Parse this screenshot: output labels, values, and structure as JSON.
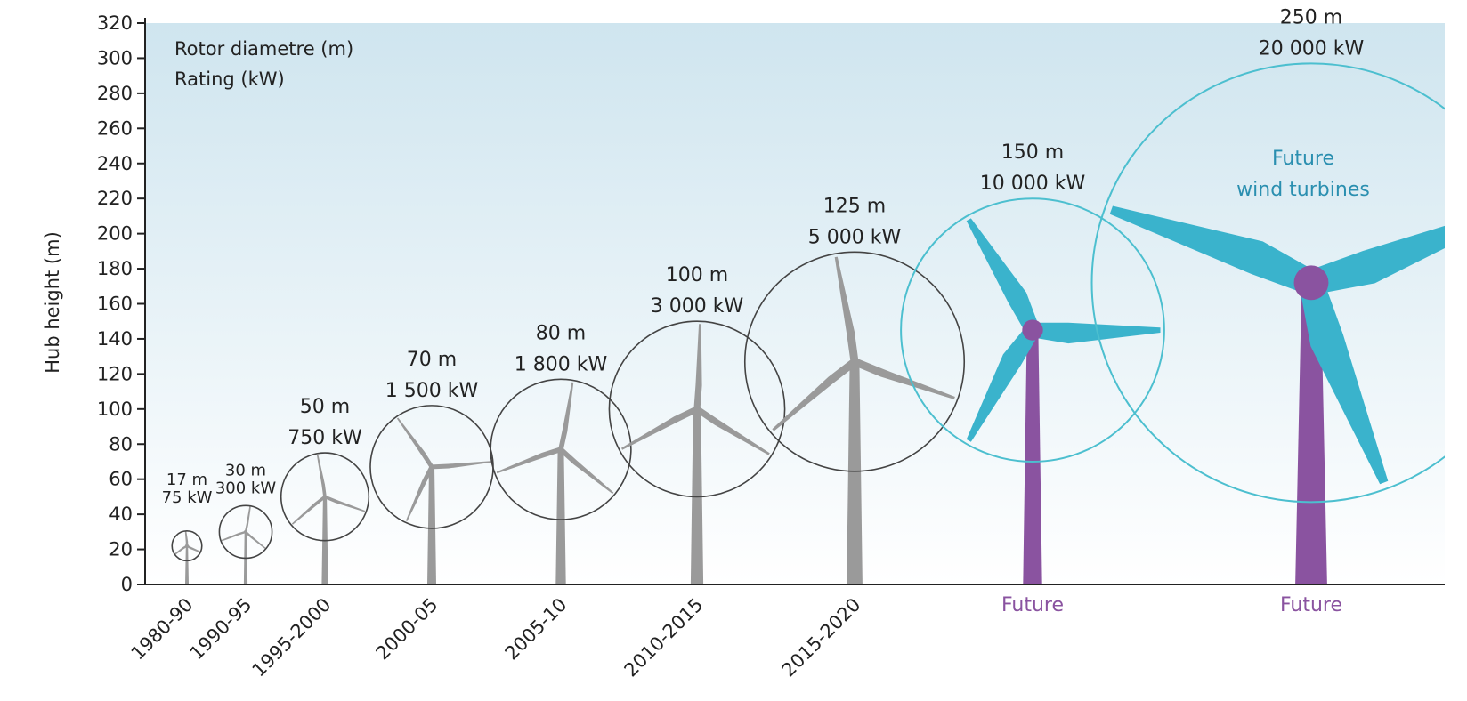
{
  "chart_data": {
    "type": "scatter",
    "legend": {
      "line1": "Rotor diametre (m)",
      "line2": "Rating (kW)"
    },
    "ylabel": "Hub height (m)",
    "ylim": [
      0,
      320
    ],
    "yticks": [
      0,
      20,
      40,
      60,
      80,
      100,
      120,
      140,
      160,
      180,
      200,
      220,
      240,
      260,
      280,
      300,
      320
    ],
    "turbines": [
      {
        "category": "1980-90",
        "hub_height": 22,
        "rotor_diameter": 17,
        "diameter_label": "17 m",
        "rating_label": "75 kW",
        "future": false
      },
      {
        "category": "1990-95",
        "hub_height": 30,
        "rotor_diameter": 30,
        "diameter_label": "30 m",
        "rating_label": "300 kW",
        "future": false
      },
      {
        "category": "1995-2000",
        "hub_height": 50,
        "rotor_diameter": 50,
        "diameter_label": "50 m",
        "rating_label": "750 kW",
        "future": false
      },
      {
        "category": "2000-05",
        "hub_height": 67,
        "rotor_diameter": 70,
        "diameter_label": "70 m",
        "rating_label": "1 500 kW",
        "future": false
      },
      {
        "category": "2005-10",
        "hub_height": 77,
        "rotor_diameter": 80,
        "diameter_label": "80 m",
        "rating_label": "1 800 kW",
        "future": false
      },
      {
        "category": "2010-2015",
        "hub_height": 100,
        "rotor_diameter": 100,
        "diameter_label": "100 m",
        "rating_label": "3 000 kW",
        "future": false
      },
      {
        "category": "2015-2020",
        "hub_height": 127,
        "rotor_diameter": 125,
        "diameter_label": "125 m",
        "rating_label": "5 000 kW",
        "future": false
      },
      {
        "category": "Future",
        "hub_height": 145,
        "rotor_diameter": 150,
        "diameter_label": "150 m",
        "rating_label": "10 000 kW",
        "future": true
      },
      {
        "category": "Future",
        "hub_height": 172,
        "rotor_diameter": 250,
        "diameter_label": "250 m",
        "rating_label": "20 000 kW",
        "future": true
      }
    ],
    "annotation": {
      "line1": "Future",
      "line2": "wind turbines"
    },
    "colors": {
      "current_turbine": "#9a9a9a",
      "current_circle": "#444444",
      "future_blade": "#3ab3cc",
      "future_circle": "#4cbfcf",
      "future_tower": "#8a53a0",
      "future_text": "#8a53a0",
      "annotation_text": "#2a8fb0",
      "sky_top": "#cfe5ef",
      "sky_bottom": "#ffffff",
      "axis": "#222222"
    }
  }
}
